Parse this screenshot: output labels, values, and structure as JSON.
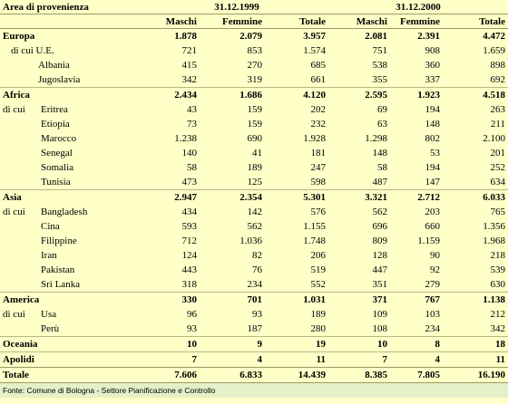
{
  "header": {
    "title": "Area di provenienza",
    "periods": [
      "31.12.1999",
      "31.12.2000"
    ],
    "columns": [
      "Maschi",
      "Femmine",
      "Totale",
      "Maschi",
      "Femmine",
      "Totale"
    ]
  },
  "sections": [
    {
      "name": "Europa",
      "values": [
        "1.878",
        "2.079",
        "3.957",
        "2.081",
        "2.391",
        "4.472"
      ],
      "items": [
        {
          "label": "di cui U.E.",
          "values": [
            "721",
            "853",
            "1.574",
            "751",
            "908",
            "1.659"
          ]
        },
        {
          "label": "Albania",
          "values": [
            "415",
            "270",
            "685",
            "538",
            "360",
            "898"
          ]
        },
        {
          "label": "Jugoslavia",
          "values": [
            "342",
            "319",
            "661",
            "355",
            "337",
            "692"
          ]
        }
      ]
    },
    {
      "name": "Africa",
      "values": [
        "2.434",
        "1.686",
        "4.120",
        "2.595",
        "1.923",
        "4.518"
      ],
      "prefix": "di cui",
      "items": [
        {
          "label": "Eritrea",
          "values": [
            "43",
            "159",
            "202",
            "69",
            "194",
            "263"
          ]
        },
        {
          "label": "Etiopia",
          "values": [
            "73",
            "159",
            "232",
            "63",
            "148",
            "211"
          ]
        },
        {
          "label": "Marocco",
          "values": [
            "1.238",
            "690",
            "1.928",
            "1.298",
            "802",
            "2.100"
          ]
        },
        {
          "label": "Senegal",
          "values": [
            "140",
            "41",
            "181",
            "148",
            "53",
            "201"
          ]
        },
        {
          "label": "Somalia",
          "values": [
            "58",
            "189",
            "247",
            "58",
            "194",
            "252"
          ]
        },
        {
          "label": "Tunisia",
          "values": [
            "473",
            "125",
            "598",
            "487",
            "147",
            "634"
          ]
        }
      ]
    },
    {
      "name": "Asia",
      "values": [
        "2.947",
        "2.354",
        "5.301",
        "3.321",
        "2.712",
        "6.033"
      ],
      "prefix": "di cui",
      "items": [
        {
          "label": "Bangladesh",
          "values": [
            "434",
            "142",
            "576",
            "562",
            "203",
            "765"
          ]
        },
        {
          "label": "Cina",
          "values": [
            "593",
            "562",
            "1.155",
            "696",
            "660",
            "1.356"
          ]
        },
        {
          "label": "Filippine",
          "values": [
            "712",
            "1.036",
            "1.748",
            "809",
            "1.159",
            "1.968"
          ]
        },
        {
          "label": "Iran",
          "values": [
            "124",
            "82",
            "206",
            "128",
            "90",
            "218"
          ]
        },
        {
          "label": "Pakistan",
          "values": [
            "443",
            "76",
            "519",
            "447",
            "92",
            "539"
          ]
        },
        {
          "label": "Sri Lanka",
          "values": [
            "318",
            "234",
            "552",
            "351",
            "279",
            "630"
          ]
        }
      ]
    },
    {
      "name": "America",
      "values": [
        "330",
        "701",
        "1.031",
        "371",
        "767",
        "1.138"
      ],
      "prefix": "di cui",
      "items": [
        {
          "label": "Usa",
          "values": [
            "96",
            "93",
            "189",
            "109",
            "103",
            "212"
          ]
        },
        {
          "label": "Perù",
          "values": [
            "93",
            "187",
            "280",
            "108",
            "234",
            "342"
          ]
        }
      ]
    },
    {
      "name": "Oceania",
      "values": [
        "10",
        "9",
        "19",
        "10",
        "8",
        "18"
      ]
    },
    {
      "name": "Apolidi",
      "values": [
        "7",
        "4",
        "11",
        "7",
        "4",
        "11"
      ]
    }
  ],
  "total": {
    "name": "Totale",
    "values": [
      "7.606",
      "6.833",
      "14.439",
      "8.385",
      "7.805",
      "16.190"
    ]
  },
  "footer": "Fonte: Comune di Bologna - Settore Pianificazione e Controllo"
}
